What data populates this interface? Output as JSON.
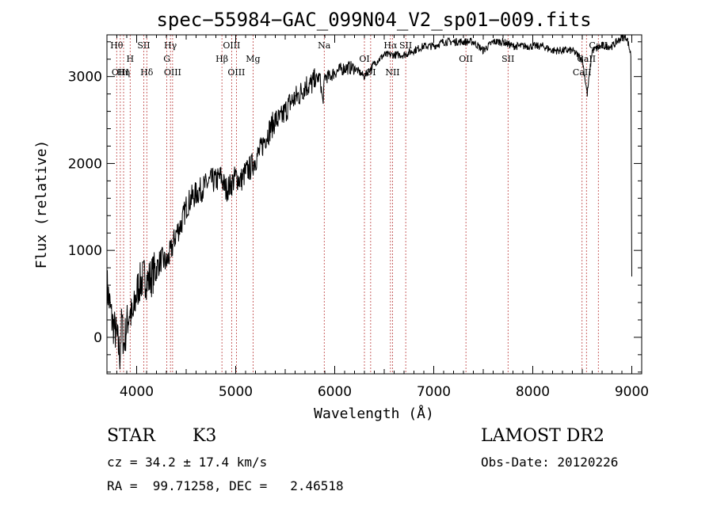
{
  "chart_data": {
    "type": "line",
    "title": "spec−55984−GAC_099N04_V2_sp01−009.fits",
    "xlabel": "Wavelength (Å)",
    "ylabel": "Flux (relative)",
    "xlim": [
      3700,
      9100
    ],
    "ylim": [
      -420,
      3480
    ],
    "xticks": [
      4000,
      5000,
      6000,
      7000,
      8000,
      9000
    ],
    "yticks": [
      0,
      1000,
      2000,
      3000
    ],
    "grid": false,
    "spectrum": {
      "x": [
        3700,
        3750,
        3800,
        3830,
        3850,
        3870,
        3900,
        3930,
        3960,
        3990,
        4020,
        4050,
        4080,
        4110,
        4150,
        4200,
        4250,
        4300,
        4350,
        4400,
        4450,
        4500,
        4550,
        4600,
        4650,
        4700,
        4750,
        4800,
        4850,
        4900,
        4950,
        5000,
        5050,
        5100,
        5150,
        5200,
        5250,
        5300,
        5350,
        5400,
        5450,
        5500,
        5550,
        5600,
        5650,
        5700,
        5750,
        5800,
        5850,
        5880,
        5900,
        5950,
        6000,
        6100,
        6200,
        6300,
        6400,
        6500,
        6600,
        6700,
        6800,
        6900,
        7000,
        7100,
        7200,
        7300,
        7400,
        7500,
        7600,
        7700,
        7800,
        7900,
        8000,
        8100,
        8200,
        8300,
        8400,
        8500,
        8550,
        8600,
        8700,
        8800,
        8850,
        8900,
        8950,
        8990,
        9000
      ],
      "y": [
        600,
        200,
        0,
        -200,
        200,
        -100,
        150,
        300,
        200,
        450,
        600,
        650,
        700,
        650,
        700,
        800,
        900,
        850,
        1000,
        1200,
        1300,
        1500,
        1600,
        1650,
        1700,
        1750,
        1800,
        1800,
        1850,
        1700,
        1750,
        1850,
        1800,
        1900,
        1950,
        2050,
        2150,
        2300,
        2400,
        2500,
        2500,
        2600,
        2700,
        2750,
        2800,
        2900,
        2900,
        2950,
        3000,
        2700,
        3000,
        3000,
        3050,
        3100,
        3100,
        3000,
        3150,
        3250,
        3250,
        3250,
        3300,
        3350,
        3350,
        3400,
        3400,
        3400,
        3400,
        3300,
        3400,
        3400,
        3350,
        3350,
        3350,
        3350,
        3300,
        3300,
        3300,
        3200,
        2800,
        3300,
        3350,
        3350,
        3400,
        3450,
        3450,
        3250,
        700
      ]
    },
    "lines": [
      {
        "label": "Hθ",
        "x": 3798,
        "row": 1
      },
      {
        "label": "H",
        "x": 3934,
        "row": 2
      },
      {
        "label": "SII",
        "x": 4072,
        "row": 1
      },
      {
        "label": "Hγ",
        "x": 4341,
        "row": 1
      },
      {
        "label": "G",
        "x": 4305,
        "row": 2
      },
      {
        "label": "OIII",
        "x": 4959,
        "row": 1
      },
      {
        "label": "Hβ",
        "x": 4861,
        "row": 2
      },
      {
        "label": "Mg",
        "x": 5175,
        "row": 2
      },
      {
        "label": "Na",
        "x": 5894,
        "row": 1
      },
      {
        "label": "OI",
        "x": 6300,
        "row": 2
      },
      {
        "label": "Hα",
        "x": 6563,
        "row": 1
      },
      {
        "label": "SII",
        "x": 6717,
        "row": 1
      },
      {
        "label": "OII",
        "x": 7325,
        "row": 2
      },
      {
        "label": "SII",
        "x": 7750,
        "row": 2
      },
      {
        "label": "CaII",
        "x": 8542,
        "row": 2
      },
      {
        "label": "CaII",
        "x": 8662,
        "row": 1
      },
      {
        "label": "OIII",
        "x": 3835,
        "row": 3
      },
      {
        "label": "Hη",
        "x": 3868,
        "row": 3
      },
      {
        "label": "Hδ",
        "x": 4102,
        "row": 3
      },
      {
        "label": "OIII",
        "x": 4363,
        "row": 3
      },
      {
        "label": "OIII",
        "x": 5007,
        "row": 3
      },
      {
        "label": "OI",
        "x": 6363,
        "row": 3
      },
      {
        "label": "NII",
        "x": 6584,
        "row": 3
      },
      {
        "label": "CaII",
        "x": 8498,
        "row": 3
      }
    ]
  },
  "info": {
    "object_class": "STAR",
    "subclass": "K3",
    "survey": "LAMOST DR2",
    "redshift": "cz = 34.2 ± 17.4 km/s",
    "obs_date": "Obs-Date: 20120226",
    "coords": "RA =  99.71258, DEC =   2.46518"
  }
}
